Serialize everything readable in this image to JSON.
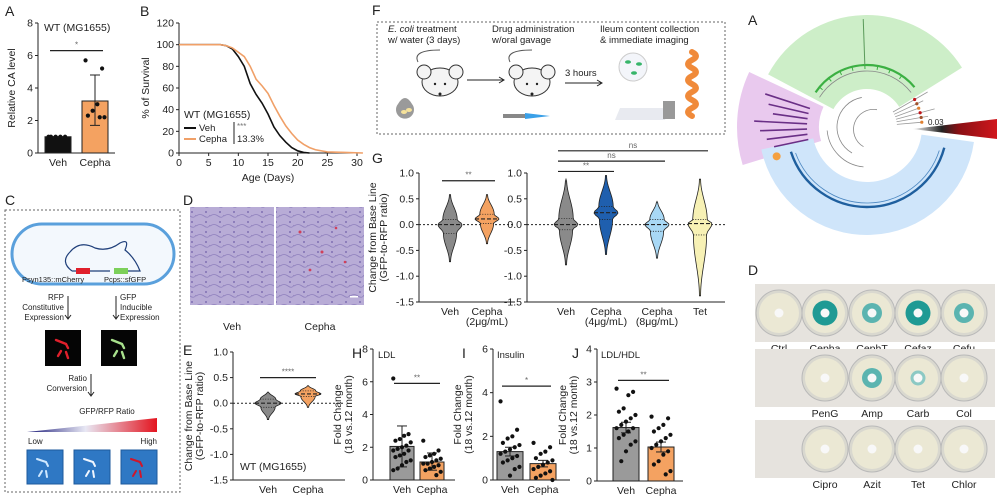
{
  "panel_labels": {
    "A": "A",
    "B": "B",
    "C": "C",
    "D": "D",
    "E": "E",
    "F": "F",
    "G": "G",
    "H": "H",
    "I": "I",
    "J": "J",
    "A2": "A",
    "D2": "D"
  },
  "panel_c": {
    "promoter_rfp": "Psyn135::mCherry",
    "promoter_gfp": "Pcps::sfGFP",
    "rfp_lines": [
      "RFP",
      "Constitutive",
      "Expression"
    ],
    "gfp_lines": [
      "GFP",
      "Inducible",
      "Expression"
    ],
    "ratio_lines": [
      "Ratio",
      "Conversion"
    ],
    "scale_title": "GFP/RFP Ratio",
    "scale_low": "Low",
    "scale_high": "High",
    "colors": {
      "rfp": "#e0202c",
      "gfp": "#8fd06a",
      "capsule": "#5aa0dc",
      "tile": "#2f78c4"
    }
  },
  "panel_d": {
    "labels": [
      "Veh",
      "Cepha"
    ]
  },
  "panel_f": {
    "step1_italic": "E. coli",
    "step1_line1_rest": " treatment",
    "step1_line2": "w/ water (3 days)",
    "step2_line1": "Drug administration",
    "step2_line2": "w/oral gavage",
    "arrow_label": "3 hours",
    "step3_line1": "Ileum content collection",
    "step3_line2": "& immediate imaging"
  },
  "tree": {
    "scale_bar_label": "0.03",
    "clade_colors": {
      "green": "#cdeec8",
      "purple": "#e9c9ee",
      "blue": "#cfe5fa",
      "red": "#c0161b"
    }
  },
  "plates": {
    "rows": [
      [
        {
          "name": "Ctrl",
          "zone": 0
        },
        {
          "name": "Cepha",
          "zone": 3
        },
        {
          "name": "CephT",
          "zone": 2
        },
        {
          "name": "Cefaz",
          "zone": 3
        },
        {
          "name": "Cefu",
          "zone": 2
        }
      ],
      [
        {
          "name": "PenG",
          "zone": 0
        },
        {
          "name": "Amp",
          "zone": 2
        },
        {
          "name": "Carb",
          "zone": 1
        },
        {
          "name": "Col",
          "zone": 0
        }
      ],
      [
        {
          "name": "Cipro",
          "zone": 0
        },
        {
          "name": "Azit",
          "zone": 0
        },
        {
          "name": "Tet",
          "zone": 0
        },
        {
          "name": "Chlor",
          "zone": 0
        }
      ]
    ]
  },
  "chart_data": [
    {
      "id": "A",
      "type": "bar",
      "title": "WT (MG1655)",
      "ylabel": "Relative CA level",
      "xlabel": "",
      "ylim": [
        0,
        8
      ],
      "yticks": [
        0,
        2,
        4,
        6,
        8
      ],
      "categories": [
        "Veh",
        "Cepha"
      ],
      "values": [
        1.0,
        3.2
      ],
      "errors": [
        [
          1.0,
          1.0
        ],
        [
          1.7,
          4.8
        ]
      ],
      "points": [
        [
          1,
          1,
          1,
          1,
          1
        ],
        [
          5.7,
          5.2,
          3.0,
          2.6,
          2.3,
          2.2,
          2.2
        ]
      ],
      "colors": [
        "#111111",
        "#f4a261"
      ],
      "significance": [
        {
          "pair": [
            0,
            1
          ],
          "at": 6.3,
          "label": "*"
        }
      ]
    },
    {
      "id": "B",
      "type": "line",
      "title": "WT (MG1655)",
      "ylabel": "% of Survival",
      "xlabel": "Age (Days)",
      "xlim": [
        0,
        30
      ],
      "xticks": [
        0,
        5,
        10,
        15,
        20,
        25,
        30
      ],
      "ylim": [
        0,
        120
      ],
      "yticks": [
        0,
        20,
        40,
        60,
        80,
        100,
        120
      ],
      "series": [
        {
          "name": "Veh",
          "color": "#111111",
          "x": [
            0,
            7,
            8,
            9,
            10,
            11,
            12,
            13,
            14,
            15,
            16,
            17,
            18,
            19,
            20,
            21,
            22
          ],
          "y": [
            100,
            100,
            99,
            96,
            89,
            80,
            64,
            54,
            46,
            36,
            24,
            16,
            10,
            5,
            2,
            0.5,
            0
          ]
        },
        {
          "name": "Cepha",
          "color": "#f0a068",
          "x": [
            0,
            7,
            8,
            9,
            10,
            11,
            12,
            13,
            14,
            15,
            16,
            17,
            18,
            19,
            20,
            21,
            22,
            23,
            25,
            28,
            31
          ],
          "y": [
            100,
            100,
            99,
            97,
            93,
            89,
            80,
            68,
            62,
            55,
            44,
            34,
            25,
            18,
            12,
            8,
            5,
            3,
            1,
            0.5,
            0
          ]
        }
      ],
      "annotation_stars": "***",
      "annotation_pct": "13.3%",
      "legend": "bottom-left"
    },
    {
      "id": "E",
      "type": "violin",
      "title": "WT (MG1655)",
      "ylabel": [
        "Change from Base Line",
        "(GFP-to-RFP ratio)"
      ],
      "ylim": [
        -1.5,
        1.0
      ],
      "yticks": [
        1.0,
        0.5,
        0.0,
        -0.5,
        -1.0,
        -1.5
      ],
      "categories": [
        "Veh",
        "Cepha"
      ],
      "violins": [
        {
          "min": -0.32,
          "q1": -0.08,
          "median": 0.0,
          "q3": 0.08,
          "max": 0.22,
          "color": "#8a8a8a"
        },
        {
          "min": -0.08,
          "q1": 0.13,
          "median": 0.18,
          "q3": 0.24,
          "max": 0.34,
          "color": "#f4a261"
        }
      ],
      "significance": [
        {
          "pair": [
            0,
            1
          ],
          "at": 0.5,
          "label": "****"
        }
      ]
    },
    {
      "id": "G_left",
      "type": "violin",
      "ylabel": [
        "Change from Base Line",
        "(GFP-to-RFP ratio)"
      ],
      "ylim": [
        -1.5,
        1.0
      ],
      "yticks": [
        1.0,
        0.5,
        0.0,
        -0.5,
        -1.0,
        -1.5
      ],
      "categories": [
        [
          "Veh",
          ""
        ],
        [
          "Cepha",
          "(2μg/mL)"
        ]
      ],
      "violins": [
        {
          "min": -0.72,
          "q1": -0.17,
          "median": 0.0,
          "q3": 0.1,
          "max": 0.58,
          "color": "#8a8a8a"
        },
        {
          "min": -0.37,
          "q1": 0.02,
          "median": 0.11,
          "q3": 0.2,
          "max": 0.58,
          "color": "#f4a261"
        }
      ],
      "significance": [
        {
          "pair": [
            0,
            1
          ],
          "at": 0.85,
          "label": "**"
        }
      ]
    },
    {
      "id": "G_right",
      "type": "violin",
      "ylim": [
        -1.5,
        1.0
      ],
      "yticks": [
        1.0,
        0.5,
        0.0,
        -0.5,
        -1.0,
        -1.5
      ],
      "categories": [
        [
          "Veh",
          ""
        ],
        [
          "Cepha",
          "(4μg/mL)"
        ],
        [
          "Cepha",
          "(8μg/mL)"
        ],
        [
          "Tet",
          ""
        ]
      ],
      "violins": [
        {
          "min": -0.78,
          "q1": -0.1,
          "median": 0.0,
          "q3": 0.12,
          "max": 0.88,
          "color": "#8a8a8a"
        },
        {
          "min": -0.58,
          "q1": 0.1,
          "median": 0.23,
          "q3": 0.35,
          "max": 0.95,
          "color": "#1f5fae"
        },
        {
          "min": -0.65,
          "q1": -0.13,
          "median": 0.0,
          "q3": 0.1,
          "max": 0.45,
          "color": "#a8d8f5"
        },
        {
          "min": -1.38,
          "q1": -0.2,
          "median": 0.02,
          "q3": 0.1,
          "max": 0.88,
          "color": "#f7f1b5"
        }
      ],
      "significance": [
        {
          "pair": [
            0,
            1
          ],
          "at": 1.03,
          "label": "**"
        },
        {
          "pair": [
            0,
            2
          ],
          "at": 1.23,
          "label": "ns"
        },
        {
          "pair": [
            0,
            3
          ],
          "at": 1.43,
          "label": "ns"
        }
      ]
    },
    {
      "id": "H",
      "type": "bar",
      "title": "LDL",
      "ylabel": [
        "Fold Change",
        "(18 vs.12 month)"
      ],
      "ylim": [
        0,
        8
      ],
      "yticks": [
        0,
        2,
        4,
        6,
        8
      ],
      "categories": [
        "Veh",
        "Cepha"
      ],
      "values": [
        2.05,
        1.1
      ],
      "errors": [
        [
          0.8,
          3.3
        ],
        [
          0.6,
          1.65
        ]
      ],
      "points": [
        [
          6.2,
          2.8,
          2.7,
          2.5,
          2.4,
          2.3,
          2.1,
          2.0,
          1.9,
          1.8,
          1.8,
          1.6,
          1.5,
          1.4,
          1.2,
          1.1,
          0.9,
          0.7,
          0.6
        ],
        [
          2.4,
          1.8,
          1.6,
          1.5,
          1.4,
          1.3,
          1.2,
          1.1,
          1.0,
          1.0,
          0.9,
          0.8,
          0.7,
          0.6,
          0.5,
          0.3
        ]
      ],
      "colors": [
        "#9a9a9a",
        "#f4a261"
      ],
      "significance": [
        {
          "pair": [
            0,
            1
          ],
          "at": 5.9,
          "label": "**"
        }
      ]
    },
    {
      "id": "I",
      "type": "bar",
      "title": "Insulin",
      "ylabel": [
        "Fold Change",
        "(18 vs.12 month)"
      ],
      "ylim": [
        0,
        6
      ],
      "yticks": [
        0,
        2,
        4,
        6
      ],
      "categories": [
        "Veh",
        "Cepha"
      ],
      "values": [
        1.3,
        0.75
      ],
      "errors": [
        [
          1.1,
          1.5
        ],
        [
          0.6,
          0.9
        ]
      ],
      "points": [
        [
          3.6,
          2.3,
          2.0,
          1.9,
          1.7,
          1.6,
          1.5,
          1.4,
          1.3,
          1.2,
          1.1,
          1.0,
          0.9,
          0.8,
          0.6,
          0.5,
          0.2
        ],
        [
          1.7,
          1.5,
          1.3,
          1.2,
          1.0,
          0.9,
          0.8,
          0.7,
          0.6,
          0.5,
          0.4,
          0.3,
          0.2,
          0.1,
          0.0
        ]
      ],
      "colors": [
        "#9a9a9a",
        "#f4a261"
      ],
      "significance": [
        {
          "pair": [
            0,
            1
          ],
          "at": 4.3,
          "label": "*"
        }
      ]
    },
    {
      "id": "J",
      "type": "bar",
      "title": "LDL/HDL",
      "ylabel": [
        "Fold Change",
        "(18 vs.12 month)"
      ],
      "ylim": [
        0,
        4
      ],
      "yticks": [
        0,
        1,
        2,
        3,
        4
      ],
      "categories": [
        "Veh",
        "Cepha"
      ],
      "values": [
        1.62,
        1.03
      ],
      "errors": [
        [
          1.46,
          1.78
        ],
        [
          0.88,
          1.18
        ]
      ],
      "points": [
        [
          2.8,
          2.7,
          2.6,
          2.2,
          2.1,
          2.0,
          1.9,
          1.8,
          1.7,
          1.6,
          1.6,
          1.5,
          1.4,
          1.3,
          1.2,
          1.1,
          0.9,
          0.6
        ],
        [
          1.95,
          1.9,
          1.7,
          1.6,
          1.5,
          1.4,
          1.3,
          1.2,
          1.1,
          1.0,
          0.9,
          0.8,
          0.6,
          0.5,
          0.3,
          0.2
        ]
      ],
      "colors": [
        "#9a9a9a",
        "#f4a261"
      ],
      "significance": [
        {
          "pair": [
            0,
            1
          ],
          "at": 3.05,
          "label": "**"
        }
      ]
    }
  ]
}
